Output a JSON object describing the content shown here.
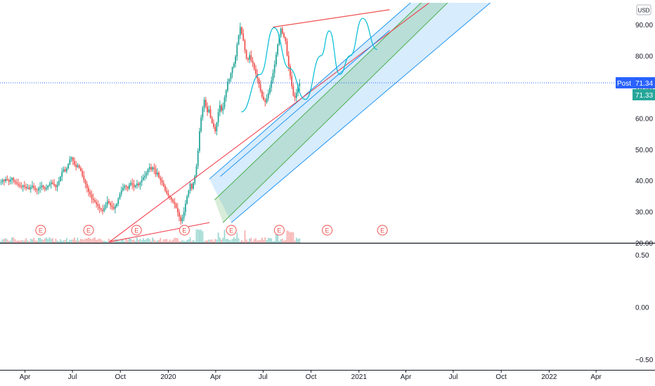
{
  "chart_data": {
    "type": "candlestick",
    "currency": "USD",
    "main_pane": {
      "ylim": [
        20,
        97
      ],
      "y_ticks": [
        "90.00",
        "80.00",
        "70.00",
        "60.00",
        "50.00",
        "40.00",
        "30.00",
        "20.00"
      ],
      "y_tick_values": [
        90,
        80,
        70,
        60,
        50,
        40,
        30,
        20
      ],
      "x_range": [
        "2019-02-12",
        "2022-06-10"
      ],
      "price": {
        "start": "2019-02-14",
        "step_days": 3,
        "close": [
          39.5,
          40.2,
          39.8,
          40.5,
          40.1,
          39.6,
          40.3,
          40.8,
          39.9,
          39.4,
          39.0,
          38.6,
          38.2,
          37.9,
          38.4,
          38.0,
          37.5,
          37.8,
          37.2,
          37.9,
          38.3,
          37.6,
          37.0,
          36.8,
          37.5,
          37.9,
          38.4,
          37.7,
          37.2,
          37.6,
          38.3,
          38.8,
          39.4,
          39.0,
          38.5,
          37.9,
          38.6,
          39.8,
          41.2,
          42.8,
          43.6,
          42.9,
          43.9,
          45.2,
          46.8,
          47.4,
          46.2,
          45.1,
          44.3,
          44.9,
          44.0,
          43.1,
          41.6,
          40.2,
          38.9,
          37.6,
          36.4,
          35.5,
          34.2,
          33.7,
          33.1,
          32.4,
          31.8,
          31.0,
          30.6,
          30.2,
          31.2,
          32.1,
          33.4,
          32.8,
          32.0,
          31.5,
          30.9,
          31.7,
          32.5,
          34.1,
          35.6,
          36.8,
          37.6,
          38.3,
          38.0,
          37.4,
          38.6,
          39.2,
          38.7,
          37.9,
          38.4,
          39.0,
          38.5,
          39.3,
          40.2,
          41.0,
          41.5,
          42.4,
          43.6,
          44.3,
          43.5,
          44.2,
          43.6,
          41.9,
          42.5,
          40.9,
          40.1,
          39.3,
          38.2,
          36.8,
          35.9,
          35.1,
          34.6,
          33.9,
          33.2,
          32.5,
          31.2,
          29.8,
          28.4,
          26.9,
          28.0,
          29.9,
          32.6,
          34.9,
          36.8,
          38.9,
          37.4,
          39.2,
          41.5,
          44.6,
          49.5,
          55.8,
          60.2,
          63.4,
          65.9,
          63.8,
          61.9,
          62.8,
          60.1,
          58.4,
          57.2,
          55.8,
          58.6,
          61.9,
          64.1,
          62.4,
          63.5,
          66.6,
          68.9,
          71.7,
          72.5,
          74.4,
          76.4,
          77.5,
          79.8,
          83.6,
          86.5,
          89.2,
          87.1,
          84.9,
          81.8,
          79.2,
          78.8,
          80.2,
          78.5,
          77.6,
          75.8,
          74.2,
          72.6,
          70.8,
          68.7,
          66.9,
          65.8,
          65.1,
          66.4,
          68.0,
          69.8,
          72.1,
          74.5,
          77.2,
          80.4,
          83.6,
          86.3,
          88.7,
          87.2,
          85.9,
          84.7,
          80.1,
          76.6,
          73.5,
          70.3,
          67.2,
          66.5,
          68.1,
          70.2,
          71.3
        ]
      },
      "earnings_markers": [
        "2019-05-01",
        "2019-08-01",
        "2019-11-01",
        "2020-02-01",
        "2020-05-01",
        "2020-08-01",
        "2020-11-01",
        "2021-02-15"
      ],
      "last_price": "71.33",
      "post_market": {
        "label": "Post",
        "value": "71.34"
      }
    },
    "lower_pane": {
      "ylim": [
        -0.6,
        0.6
      ],
      "y_ticks": [
        "0.50",
        "0.00",
        "−0.50"
      ],
      "y_tick_values": [
        0.5,
        0,
        -0.5
      ]
    },
    "x_ticks": [
      {
        "label": "Apr",
        "date": "2019-04-01"
      },
      {
        "label": "Jul",
        "date": "2019-07-01"
      },
      {
        "label": "Oct",
        "date": "2019-10-01"
      },
      {
        "label": "2020",
        "date": "2020-01-01"
      },
      {
        "label": "Apr",
        "date": "2020-04-01"
      },
      {
        "label": "Jul",
        "date": "2020-07-01"
      },
      {
        "label": "Oct",
        "date": "2020-10-01"
      },
      {
        "label": "2021",
        "date": "2021-01-01"
      },
      {
        "label": "Apr",
        "date": "2021-04-01"
      },
      {
        "label": "Jul",
        "date": "2021-07-01"
      },
      {
        "label": "Oct",
        "date": "2021-10-01"
      },
      {
        "label": "2022",
        "date": "2022-01-01"
      },
      {
        "label": "Apr",
        "date": "2022-04-01"
      }
    ],
    "drawings": {
      "pitchfork": {
        "pivot": {
          "date": "2020-03-20",
          "price": 26.5
        },
        "handle_start": {
          "date": "2019-09-10",
          "price": 20.3
        },
        "median_end": {
          "date": "2021-05-15",
          "price": 96.9
        },
        "upper_line": {
          "start": {
            "date": "2020-03-20",
            "price": 40.5
          },
          "end": {
            "date": "2021-04-10",
            "price": 97
          }
        },
        "lower_line": {
          "start": {
            "date": "2020-05-01",
            "price": 26.5
          },
          "end": {
            "date": "2021-09-10",
            "price": 97
          }
        },
        "inner_upper_line": {
          "start": {
            "date": "2020-03-30",
            "price": 33.8
          },
          "end": {
            "date": "2021-04-30",
            "price": 97
          }
        },
        "inner_lower_line": {
          "start": {
            "date": "2020-04-15",
            "price": 26.5
          },
          "end": {
            "date": "2021-06-20",
            "price": 97
          }
        }
      },
      "trendline_top": {
        "start": {
          "date": "2020-07-20",
          "price": 89.2
        },
        "end": {
          "date": "2021-03-01",
          "price": 94.8
        }
      },
      "trendline_channel": {
        "start": {
          "date": "2020-04-10",
          "price": 41.3
        },
        "end": {
          "date": "2021-03-01",
          "price": 88.2
        }
      },
      "projection_curve": [
        {
          "date": "2020-05-20",
          "price": 62
        },
        {
          "date": "2020-06-25",
          "price": 74
        },
        {
          "date": "2020-07-22",
          "price": 89
        },
        {
          "date": "2020-08-20",
          "price": 76
        },
        {
          "date": "2020-09-20",
          "price": 66
        },
        {
          "date": "2020-10-20",
          "price": 80
        },
        {
          "date": "2020-11-05",
          "price": 88
        },
        {
          "date": "2020-11-25",
          "price": 74
        },
        {
          "date": "2020-12-15",
          "price": 80
        },
        {
          "date": "2021-01-08",
          "price": 92
        },
        {
          "date": "2021-02-05",
          "price": 82
        }
      ]
    },
    "colors": {
      "up": "#26a69a",
      "down": "#ef5350",
      "trend": "#ef5350",
      "channel": "#2196f3",
      "projection": "#00bcd4",
      "median": "#f23645",
      "last_price": "#26a69a",
      "post": "#2962ff"
    }
  }
}
